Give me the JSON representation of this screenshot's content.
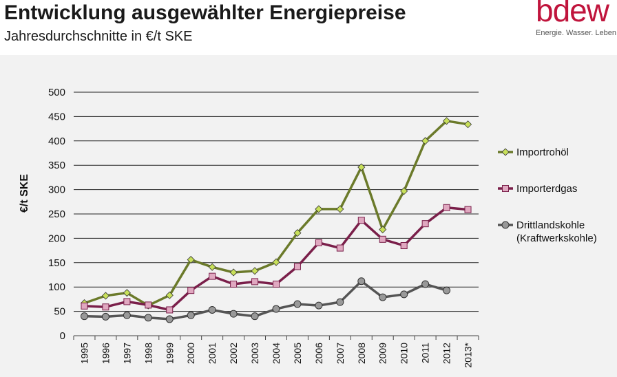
{
  "header": {
    "title": "Entwicklung ausgewählter Energiepreise",
    "subtitle": "Jahresdurchschnitte in €/t SKE"
  },
  "logo": {
    "wordmark": "bdew",
    "tagline": "Energie. Wasser. Leben.",
    "color": "#c0143c"
  },
  "chart_data": {
    "type": "line",
    "title": "",
    "xlabel": "",
    "ylabel": "€/t SKE",
    "ylim": [
      0,
      500
    ],
    "yticks": [
      0,
      50,
      100,
      150,
      200,
      250,
      300,
      350,
      400,
      450,
      500
    ],
    "grid": true,
    "legend_position": "right",
    "categories": [
      "1995",
      "1996",
      "1997",
      "1998",
      "1999",
      "2000",
      "2001",
      "2002",
      "2003",
      "2004",
      "2005",
      "2006",
      "2007",
      "2008",
      "2009",
      "2010",
      "2011",
      "2012",
      "2013*"
    ],
    "series": [
      {
        "name": "Importrohöl",
        "color": "#6b7a2a",
        "marker": "diamond",
        "marker_color": "#c8e05a",
        "values": [
          67,
          82,
          88,
          62,
          83,
          156,
          141,
          130,
          133,
          151,
          211,
          260,
          260,
          346,
          218,
          297,
          400,
          441,
          434
        ]
      },
      {
        "name": "Importerdgas",
        "color": "#7a1f4a",
        "marker": "square",
        "marker_color": "#e0a8c0",
        "values": [
          61,
          59,
          70,
          63,
          53,
          93,
          122,
          106,
          111,
          106,
          142,
          191,
          180,
          237,
          198,
          185,
          230,
          263,
          259
        ]
      },
      {
        "name": "Drittlandskohle (Kraftwerkskohle)",
        "name_lines": [
          "Drittlandskohle",
          "(Kraftwerkskohle)"
        ],
        "color": "#555555",
        "marker": "circle",
        "marker_color": "#999999",
        "values": [
          40,
          39,
          42,
          37,
          34,
          42,
          53,
          45,
          40,
          55,
          65,
          62,
          69,
          112,
          79,
          85,
          106,
          93,
          null
        ]
      }
    ]
  }
}
